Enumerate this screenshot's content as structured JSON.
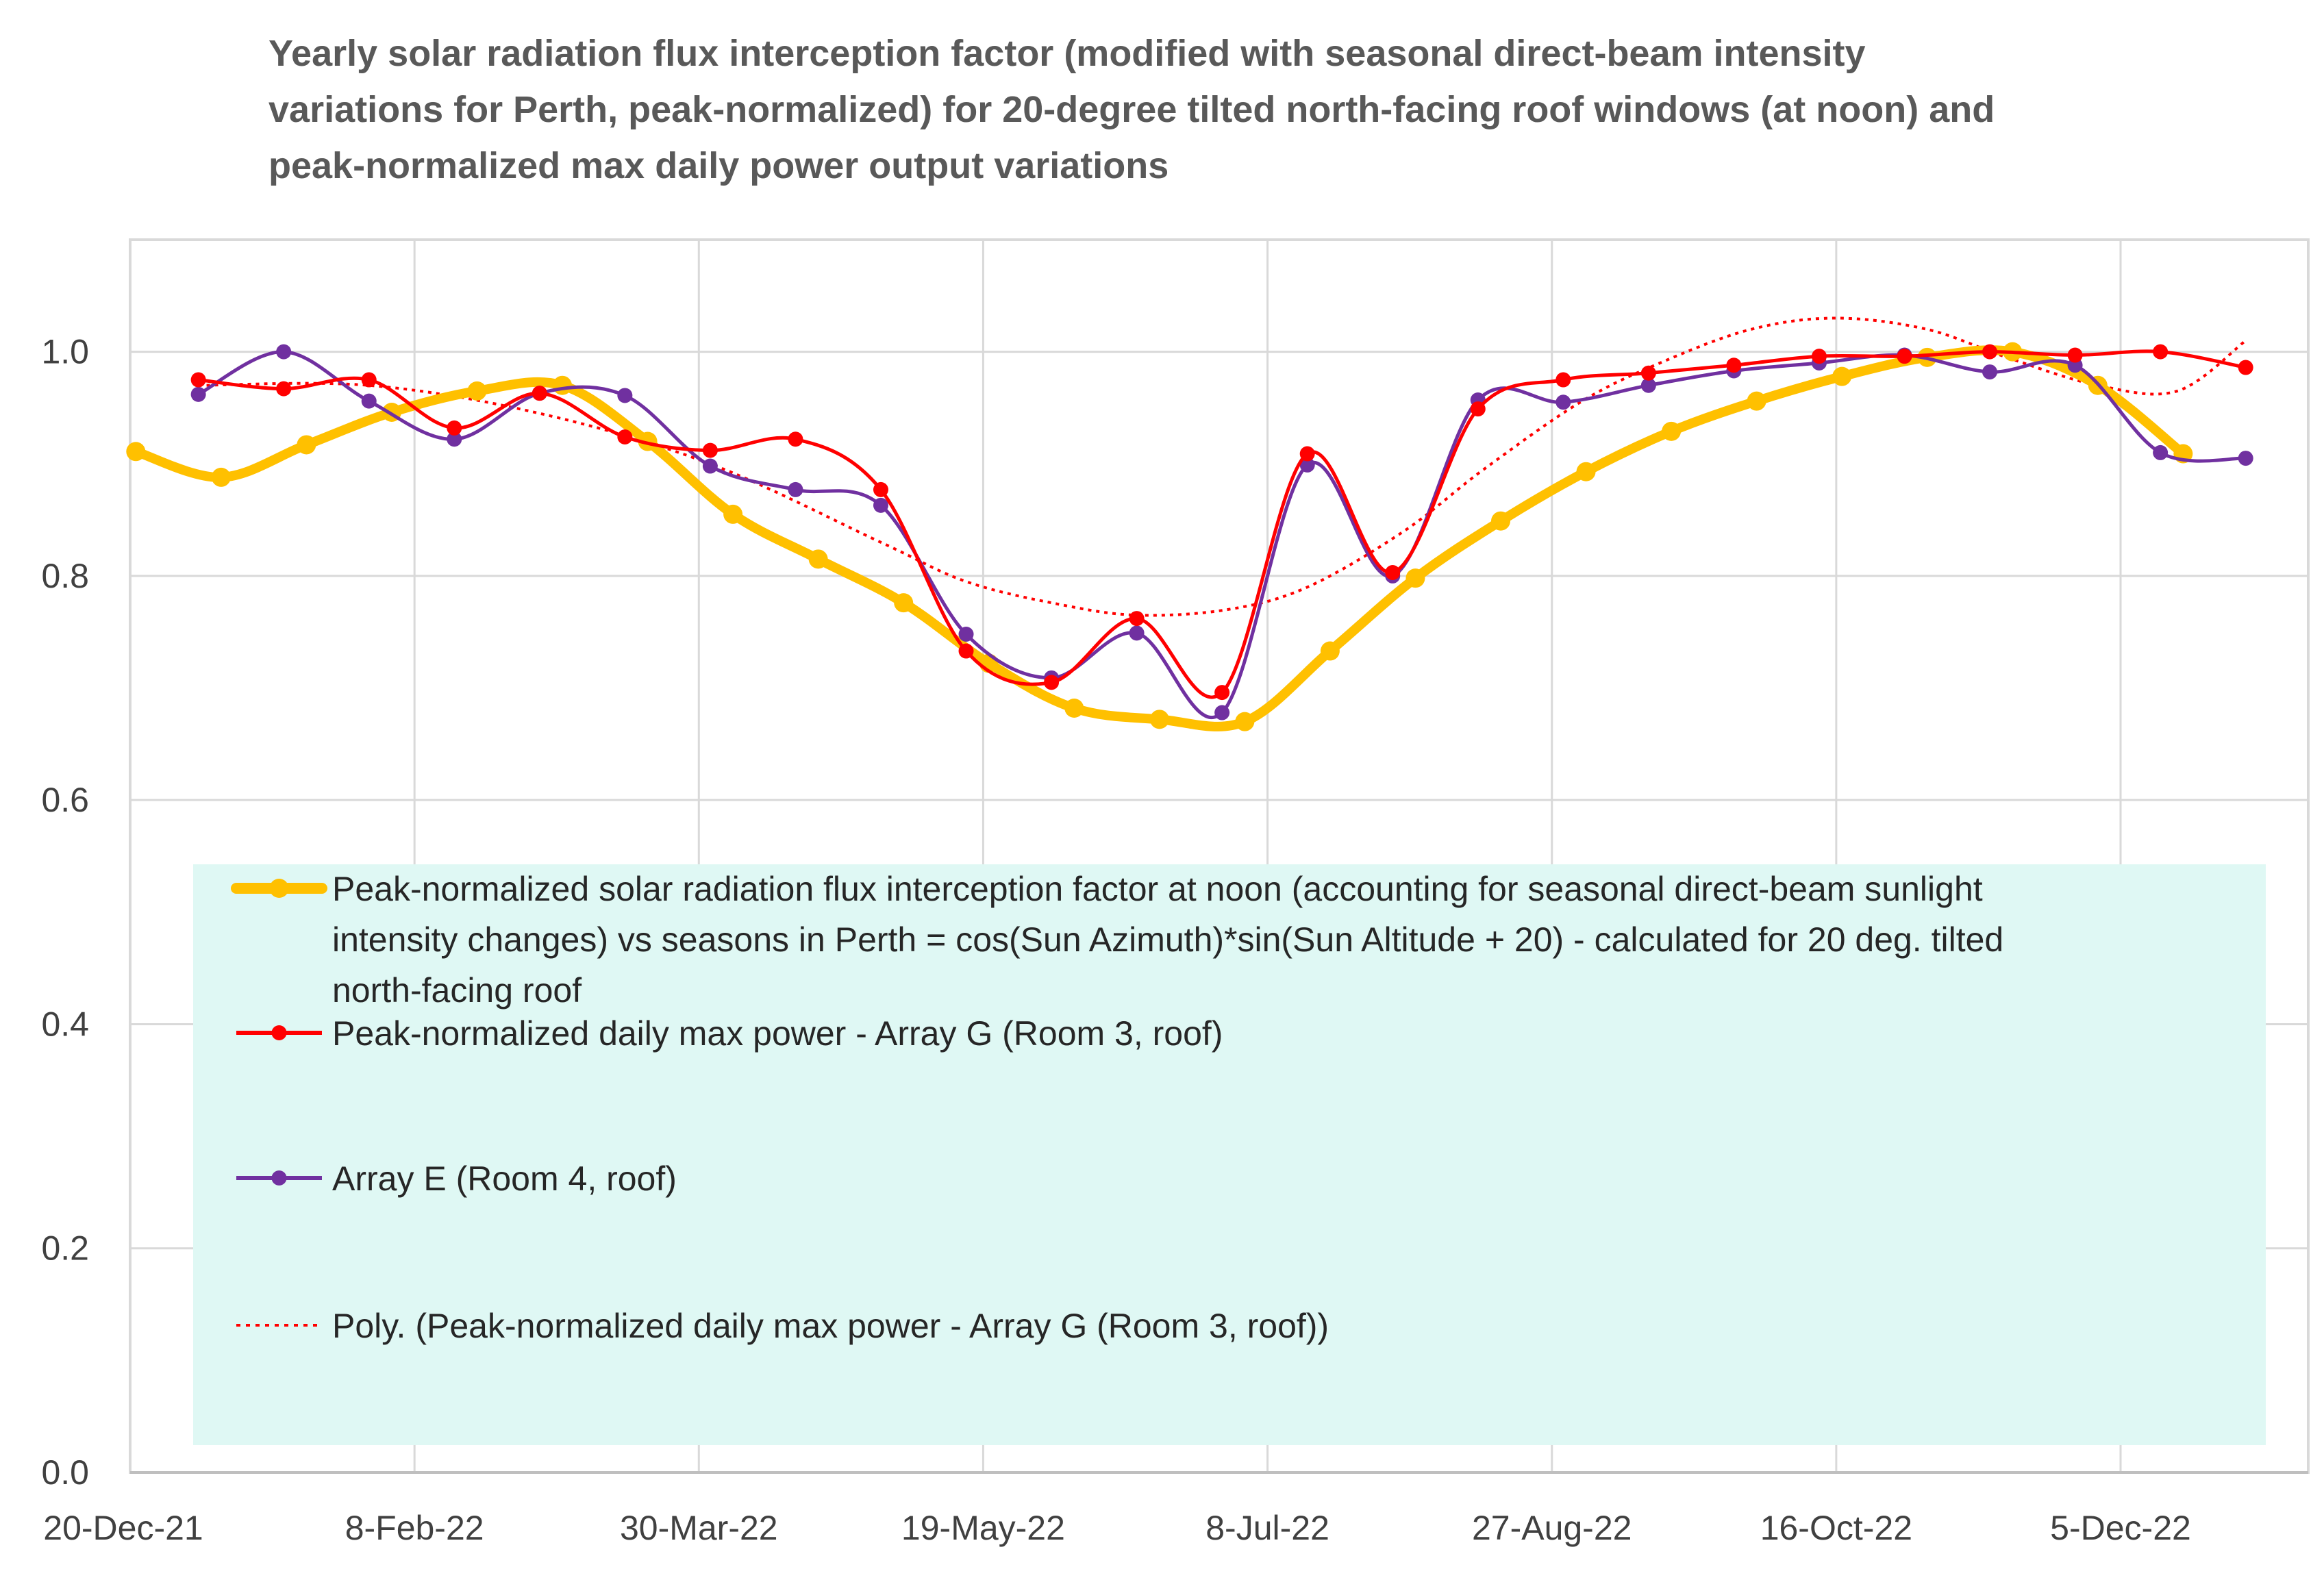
{
  "chart_data": {
    "type": "line",
    "title_lines": [
      "Yearly solar radiation flux interception factor (modified with seasonal direct-beam intensity",
      "variations for Perth, peak-normalized) for 20-degree tilted north-facing roof windows (at noon) and",
      "peak-normalized max daily power output variations"
    ],
    "xlabel": "",
    "ylabel": "",
    "xlim": [
      "2021-12-20",
      "2023-01-07"
    ],
    "ylim": [
      0,
      1.1
    ],
    "x_ticks": [
      {
        "date": "2021-12-20",
        "label": "20-Dec-21"
      },
      {
        "date": "2022-02-08",
        "label": "8-Feb-22"
      },
      {
        "date": "2022-03-30",
        "label": "30-Mar-22"
      },
      {
        "date": "2022-05-19",
        "label": "19-May-22"
      },
      {
        "date": "2022-07-08",
        "label": "8-Jul-22"
      },
      {
        "date": "2022-08-27",
        "label": "27-Aug-22"
      },
      {
        "date": "2022-10-16",
        "label": "16-Oct-22"
      },
      {
        "date": "2022-12-05",
        "label": "5-Dec-22"
      }
    ],
    "y_ticks": [
      {
        "value": 0,
        "label": "0.0"
      },
      {
        "value": 0.2,
        "label": "0.2"
      },
      {
        "value": 0.4,
        "label": "0.4"
      },
      {
        "value": 0.6,
        "label": "0.6"
      },
      {
        "value": 0.8,
        "label": "0.8"
      },
      {
        "value": 1.0,
        "label": "1.0"
      }
    ],
    "grid": {
      "vertical": true,
      "horizontal": true
    },
    "legend_position": "inside-bottom",
    "legend_background": "#dff8f4",
    "series": [
      {
        "name": "Peak-normalized solar radiation flux interception factor at noon (accounting for seasonal direct-beam sunlight intensity changes) vs seasons in Perth = cos(Sun Azimuth)*sin(Sun Altitude + 20) - calculated for 20 deg. tilted north-facing roof",
        "legend_lines": [
          "Peak-normalized solar radiation flux interception factor at noon (accounting for seasonal direct-beam sunlight",
          "intensity changes) vs seasons in Perth = cos(Sun Azimuth)*sin(Sun Altitude + 20) - calculated for 20 deg. tilted",
          "north-facing roof"
        ],
        "color": "#ffc000",
        "style": "thick-solid-markers",
        "points": [
          [
            "2021-12-21",
            0.911
          ],
          [
            "2022-01-05",
            0.888
          ],
          [
            "2022-01-20",
            0.917
          ],
          [
            "2022-02-04",
            0.946
          ],
          [
            "2022-02-19",
            0.965
          ],
          [
            "2022-03-06",
            0.97
          ],
          [
            "2022-03-21",
            0.92
          ],
          [
            "2022-04-05",
            0.855
          ],
          [
            "2022-04-20",
            0.815
          ],
          [
            "2022-05-05",
            0.776
          ],
          [
            "2022-05-20",
            0.722
          ],
          [
            "2022-06-04",
            0.682
          ],
          [
            "2022-06-19",
            0.672
          ],
          [
            "2022-07-04",
            0.67
          ],
          [
            "2022-07-19",
            0.733
          ],
          [
            "2022-08-03",
            0.798
          ],
          [
            "2022-08-18",
            0.849
          ],
          [
            "2022-09-02",
            0.893
          ],
          [
            "2022-09-17",
            0.929
          ],
          [
            "2022-10-02",
            0.956
          ],
          [
            "2022-10-17",
            0.978
          ],
          [
            "2022-11-01",
            0.995
          ],
          [
            "2022-11-16",
            1.0
          ],
          [
            "2022-12-01",
            0.97
          ],
          [
            "2022-12-16",
            0.909
          ]
        ]
      },
      {
        "name": "Peak-normalized daily max power - Array G (Room 3, roof)",
        "legend_lines": [
          "Peak-normalized daily max power - Array G (Room 3, roof)"
        ],
        "color": "#ff0000",
        "style": "solid-markers",
        "points": [
          [
            "2022-01-01",
            0.975
          ],
          [
            "2022-01-16",
            0.967
          ],
          [
            "2022-01-31",
            0.975
          ],
          [
            "2022-02-15",
            0.932
          ],
          [
            "2022-03-02",
            0.963
          ],
          [
            "2022-03-17",
            0.924
          ],
          [
            "2022-04-01",
            0.912
          ],
          [
            "2022-04-16",
            0.922
          ],
          [
            "2022-05-01",
            0.877
          ],
          [
            "2022-05-16",
            0.733
          ],
          [
            "2022-05-31",
            0.705
          ],
          [
            "2022-06-15",
            0.762
          ],
          [
            "2022-06-30",
            0.696
          ],
          [
            "2022-07-15",
            0.909
          ],
          [
            "2022-07-30",
            0.803
          ],
          [
            "2022-08-14",
            0.949
          ],
          [
            "2022-08-29",
            0.975
          ],
          [
            "2022-09-13",
            0.981
          ],
          [
            "2022-09-28",
            0.988
          ],
          [
            "2022-10-13",
            0.996
          ],
          [
            "2022-10-28",
            0.996
          ],
          [
            "2022-11-12",
            1.0
          ],
          [
            "2022-11-27",
            0.997
          ],
          [
            "2022-12-12",
            1.0
          ],
          [
            "2022-12-27",
            0.986
          ]
        ]
      },
      {
        "name": "Array E (Room 4, roof)",
        "legend_lines": [
          "Array E (Room 4, roof)"
        ],
        "color": "#7030a0",
        "style": "solid-markers",
        "points": [
          [
            "2022-01-01",
            0.962
          ],
          [
            "2022-01-16",
            1.0
          ],
          [
            "2022-01-31",
            0.956
          ],
          [
            "2022-02-15",
            0.922
          ],
          [
            "2022-03-02",
            0.963
          ],
          [
            "2022-03-17",
            0.961
          ],
          [
            "2022-04-01",
            0.898
          ],
          [
            "2022-04-16",
            0.877
          ],
          [
            "2022-05-01",
            0.863
          ],
          [
            "2022-05-16",
            0.748
          ],
          [
            "2022-05-31",
            0.709
          ],
          [
            "2022-06-15",
            0.749
          ],
          [
            "2022-06-30",
            0.678
          ],
          [
            "2022-07-15",
            0.899
          ],
          [
            "2022-07-30",
            0.8
          ],
          [
            "2022-08-14",
            0.957
          ],
          [
            "2022-08-29",
            0.955
          ],
          [
            "2022-09-13",
            0.97
          ],
          [
            "2022-09-28",
            0.983
          ],
          [
            "2022-10-13",
            0.99
          ],
          [
            "2022-10-28",
            0.997
          ],
          [
            "2022-11-12",
            0.982
          ],
          [
            "2022-11-27",
            0.988
          ],
          [
            "2022-12-12",
            0.91
          ],
          [
            "2022-12-27",
            0.905
          ]
        ]
      },
      {
        "name": "Poly. (Peak-normalized daily max power - Array G (Room 3, roof))",
        "legend_lines": [
          "Poly. (Peak-normalized daily max power - Array G (Room 3, roof))"
        ],
        "color": "#ff0000",
        "style": "dotted",
        "points": [
          [
            "2022-01-01",
            0.97
          ],
          [
            "2022-01-31",
            0.97
          ],
          [
            "2022-03-02",
            0.945
          ],
          [
            "2022-04-01",
            0.9
          ],
          [
            "2022-05-01",
            0.83
          ],
          [
            "2022-05-16",
            0.795
          ],
          [
            "2022-06-01",
            0.775
          ],
          [
            "2022-06-15",
            0.765
          ],
          [
            "2022-07-01",
            0.77
          ],
          [
            "2022-07-15",
            0.79
          ],
          [
            "2022-08-01",
            0.84
          ],
          [
            "2022-08-15",
            0.895
          ],
          [
            "2022-09-01",
            0.955
          ],
          [
            "2022-09-15",
            0.99
          ],
          [
            "2022-10-01",
            1.02
          ],
          [
            "2022-10-16",
            1.03
          ],
          [
            "2022-11-01",
            1.02
          ],
          [
            "2022-11-15",
            0.995
          ],
          [
            "2022-12-01",
            0.97
          ],
          [
            "2022-12-15",
            0.965
          ],
          [
            "2022-12-27",
            1.01
          ]
        ]
      }
    ]
  }
}
